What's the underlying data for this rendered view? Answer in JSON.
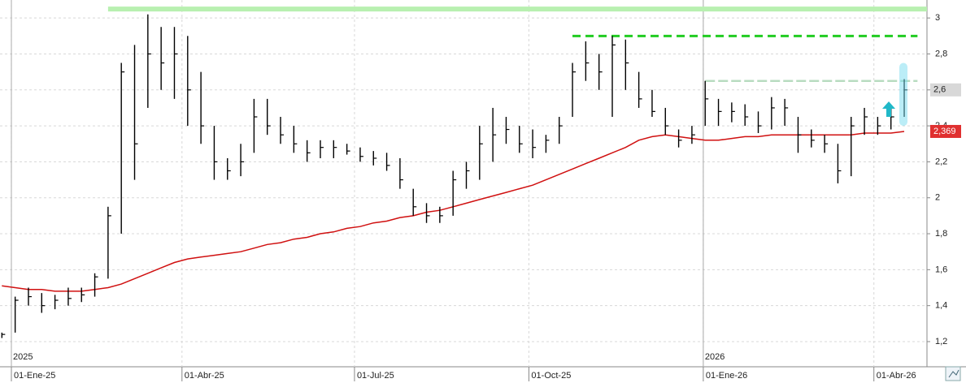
{
  "chart_data": {
    "type": "ohlc",
    "xlim": [
      "2024-12-26",
      "2026-04-29"
    ],
    "xticks": [
      {
        "value": "2025-01-01",
        "label": "01-Ene-25"
      },
      {
        "value": "2025-04-01",
        "label": "01-Abr-25"
      },
      {
        "value": "2025-07-01",
        "label": "01-Jul-25"
      },
      {
        "value": "2025-10-01",
        "label": "01-Oct-25"
      },
      {
        "value": "2026-01-01",
        "label": "01-Ene-26"
      },
      {
        "value": "2026-04-01",
        "label": "01-Abr-26"
      }
    ],
    "year_labels": [
      {
        "value": "2025-01-01",
        "label": "2025"
      },
      {
        "value": "2026-01-01",
        "label": "2026"
      }
    ],
    "ylim": [
      1.06,
      3.1
    ],
    "yticks": [
      {
        "value": 1.2,
        "label": "1,2"
      },
      {
        "value": 1.4,
        "label": "1,4"
      },
      {
        "value": 1.6,
        "label": "1,6"
      },
      {
        "value": 1.8,
        "label": "1,8"
      },
      2,
      {
        "value": 2.2,
        "label": "2,2"
      },
      {
        "value": 2.4,
        "label": "2,4"
      },
      {
        "value": 2.6,
        "label": "2,6"
      },
      {
        "value": 2.8,
        "label": "2,8"
      },
      3
    ],
    "grid": true,
    "x": [
      "2024-12-27",
      "2025-01-03",
      "2025-01-10",
      "2025-01-17",
      "2025-01-24",
      "2025-01-31",
      "2025-02-07",
      "2025-02-14",
      "2025-02-21",
      "2025-02-28",
      "2025-03-07",
      "2025-03-14",
      "2025-03-21",
      "2025-03-28",
      "2025-04-04",
      "2025-04-11",
      "2025-04-18",
      "2025-04-25",
      "2025-05-02",
      "2025-05-09",
      "2025-05-16",
      "2025-05-23",
      "2025-05-30",
      "2025-06-06",
      "2025-06-13",
      "2025-06-20",
      "2025-06-27",
      "2025-07-04",
      "2025-07-11",
      "2025-07-18",
      "2025-07-25",
      "2025-08-01",
      "2025-08-08",
      "2025-08-15",
      "2025-08-22",
      "2025-08-29",
      "2025-09-05",
      "2025-09-12",
      "2025-09-19",
      "2025-09-26",
      "2025-10-03",
      "2025-10-10",
      "2025-10-17",
      "2025-10-24",
      "2025-10-31",
      "2025-11-07",
      "2025-11-14",
      "2025-11-21",
      "2025-11-28",
      "2025-12-05",
      "2025-12-12",
      "2025-12-19",
      "2025-12-26",
      "2026-01-02",
      "2026-01-09",
      "2026-01-16",
      "2026-01-23",
      "2026-01-30",
      "2026-02-06",
      "2026-02-13",
      "2026-02-20",
      "2026-02-27",
      "2026-03-06",
      "2026-03-13",
      "2026-03-20",
      "2026-03-27",
      "2026-04-03",
      "2026-04-10",
      "2026-04-17"
    ],
    "ohlc": {
      "color": "#000000",
      "low": [
        1.22,
        1.25,
        1.4,
        1.36,
        1.38,
        1.4,
        1.42,
        1.45,
        1.55,
        1.8,
        2.1,
        2.5,
        2.6,
        2.55,
        2.4,
        2.3,
        2.1,
        2.1,
        2.12,
        2.25,
        2.35,
        2.3,
        2.25,
        2.2,
        2.22,
        2.22,
        2.24,
        2.2,
        2.18,
        2.15,
        2.05,
        1.9,
        1.86,
        1.86,
        1.9,
        2.05,
        2.1,
        2.2,
        2.3,
        2.25,
        2.22,
        2.25,
        2.3,
        2.45,
        2.65,
        2.6,
        2.45,
        2.6,
        2.5,
        2.45,
        2.35,
        2.28,
        2.3,
        2.4,
        2.4,
        2.42,
        2.4,
        2.36,
        2.38,
        2.4,
        2.25,
        2.28,
        2.25,
        2.08,
        2.12,
        2.35,
        2.35,
        2.38,
        2.45
      ],
      "high": [
        1.25,
        1.45,
        1.5,
        1.47,
        1.46,
        1.5,
        1.5,
        1.58,
        1.95,
        2.75,
        2.85,
        3.02,
        2.95,
        2.95,
        2.9,
        2.7,
        2.4,
        2.22,
        2.3,
        2.55,
        2.55,
        2.45,
        2.4,
        2.32,
        2.32,
        2.32,
        2.3,
        2.28,
        2.26,
        2.25,
        2.22,
        2.05,
        1.97,
        1.95,
        2.15,
        2.2,
        2.4,
        2.5,
        2.45,
        2.4,
        2.38,
        2.35,
        2.45,
        2.75,
        2.87,
        2.8,
        2.9,
        2.88,
        2.7,
        2.6,
        2.5,
        2.38,
        2.4,
        2.65,
        2.55,
        2.53,
        2.52,
        2.48,
        2.56,
        2.55,
        2.45,
        2.38,
        2.35,
        2.3,
        2.45,
        2.5,
        2.45,
        2.5,
        2.66
      ],
      "close": [
        1.24,
        1.43,
        1.45,
        1.4,
        1.43,
        1.44,
        1.46,
        1.56,
        1.9,
        2.7,
        2.3,
        2.8,
        2.75,
        2.8,
        2.6,
        2.4,
        2.2,
        2.15,
        2.2,
        2.45,
        2.4,
        2.35,
        2.3,
        2.25,
        2.28,
        2.28,
        2.26,
        2.23,
        2.22,
        2.18,
        2.1,
        1.95,
        1.9,
        1.9,
        2.1,
        2.15,
        2.3,
        2.35,
        2.38,
        2.3,
        2.28,
        2.32,
        2.4,
        2.7,
        2.75,
        2.7,
        2.85,
        2.75,
        2.55,
        2.48,
        2.4,
        2.32,
        2.35,
        2.55,
        2.48,
        2.48,
        2.45,
        2.4,
        2.5,
        2.5,
        2.35,
        2.32,
        2.3,
        2.15,
        2.4,
        2.45,
        2.4,
        2.45,
        2.6
      ]
    },
    "ma": {
      "color": "#d01010",
      "values": [
        1.51,
        1.5,
        1.49,
        1.49,
        1.48,
        1.48,
        1.48,
        1.49,
        1.5,
        1.52,
        1.55,
        1.58,
        1.61,
        1.64,
        1.66,
        1.67,
        1.68,
        1.69,
        1.7,
        1.72,
        1.74,
        1.75,
        1.77,
        1.78,
        1.8,
        1.81,
        1.83,
        1.84,
        1.86,
        1.87,
        1.89,
        1.9,
        1.92,
        1.93,
        1.95,
        1.97,
        1.99,
        2.01,
        2.03,
        2.05,
        2.07,
        2.1,
        2.13,
        2.16,
        2.19,
        2.22,
        2.25,
        2.28,
        2.32,
        2.34,
        2.35,
        2.34,
        2.33,
        2.32,
        2.32,
        2.33,
        2.34,
        2.34,
        2.35,
        2.35,
        2.35,
        2.35,
        2.35,
        2.35,
        2.35,
        2.36,
        2.36,
        2.36,
        2.369
      ]
    },
    "levels": [
      {
        "value": 3.05,
        "from": "2025-02-21",
        "to": "2026-04-29",
        "color": "#b8f0b0",
        "style": "thick"
      },
      {
        "value": 2.9,
        "from": "2025-10-24",
        "to": "2026-04-24",
        "color": "#22cc22",
        "style": "dashed"
      },
      {
        "value": 2.65,
        "from": "2026-01-02",
        "to": "2026-04-24",
        "color": "#b8dcc0",
        "style": "faint-dashed"
      }
    ],
    "price_tags": [
      {
        "value": 2.6,
        "label": "2,6",
        "color": "#d8d8d8"
      },
      {
        "value": 2.369,
        "label": "2,369",
        "color": "#e03030"
      }
    ]
  }
}
